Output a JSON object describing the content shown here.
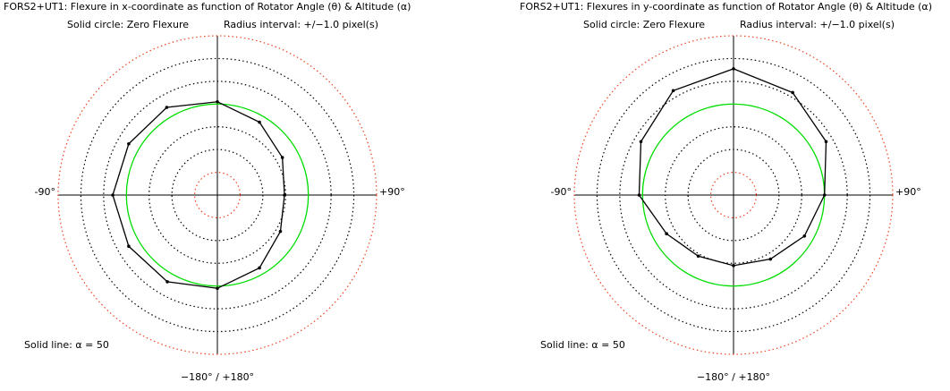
{
  "chart_data": [
    {
      "type": "polar",
      "title": "FORS2+UT1: Flexure in x-coordinate as function of Rotator Angle (θ) & Altitude (α)",
      "note_left": "Solid circle: Zero Flexure",
      "note_right": "Radius interval: +/−1.0 pixel(s)",
      "label_left": "-90°",
      "label_right": "+90°",
      "label_bottom": "−180° / +180°",
      "series": [
        {
          "name": "Solid line: α = 50",
          "color": "#000000",
          "x": [
            0,
            30,
            60,
            90,
            120,
            150,
            180,
            210,
            240,
            270,
            300,
            330
          ],
          "values": [
            0.1,
            -0.3,
            -0.7,
            -1.05,
            -0.8,
            -0.3,
            0.1,
            0.4,
            0.5,
            0.6,
            0.5,
            0.45
          ]
        }
      ],
      "rlim": [
        -4,
        3
      ],
      "rticks": [
        -3,
        -2,
        -1,
        0,
        1,
        2,
        3
      ],
      "grid_color": "#000000",
      "zero_color": "#00dd00",
      "limit_color": "#ee4422"
    },
    {
      "type": "polar",
      "title": "FORS2+UT1: Flexures in y-coordinate as function of Rotator Angle (θ) & Altitude (α)",
      "note_left": "Solid circle: Zero Flexure",
      "note_right": "Radius interval: +/−1.0 pixel(s)",
      "label_left": "-90°",
      "label_right": "+90°",
      "label_bottom": "−180° / +180°",
      "series": [
        {
          "name": "Solid line: α = 50",
          "color": "#000000",
          "x": [
            0,
            30,
            60,
            90,
            120,
            150,
            180,
            210,
            240,
            270,
            300,
            330
          ],
          "values": [
            1.55,
            1.2,
            0.7,
            0.0,
            -0.4,
            -0.75,
            -0.9,
            -0.9,
            -0.6,
            0.15,
            0.7,
            1.3
          ]
        }
      ],
      "rlim": [
        -4,
        3
      ],
      "rticks": [
        -3,
        -2,
        -1,
        0,
        1,
        2,
        3
      ],
      "grid_color": "#000000",
      "zero_color": "#00dd00",
      "limit_color": "#ee4422"
    }
  ]
}
